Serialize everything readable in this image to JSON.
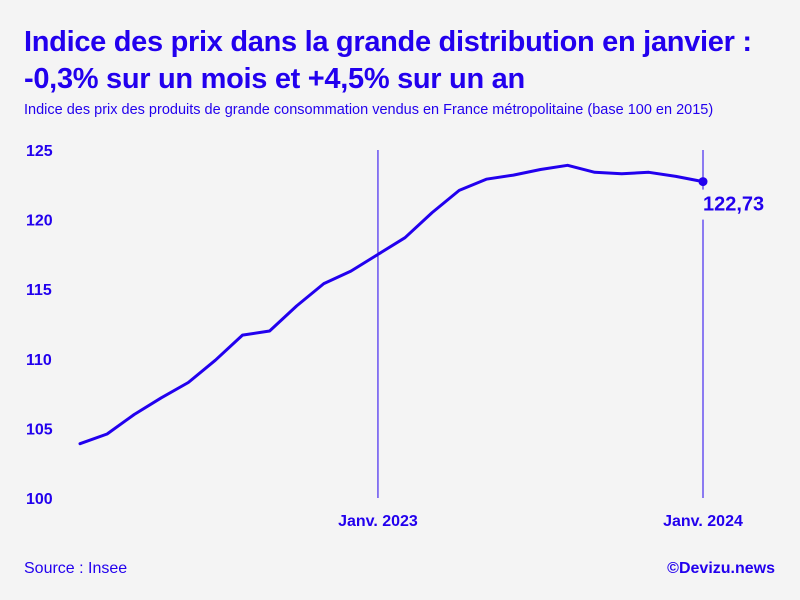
{
  "title_line1": "Indice des prix dans la grande distribution en janvier :",
  "title_line2": "-0,3% sur un mois et +4,5% sur un an",
  "subtitle": "Indice des prix des produits de grande consommation vendus en France métropolitaine (base 100 en 2015)",
  "source": "Source : Insee",
  "brand": "©Devizu.news",
  "colors": {
    "accent": "#2200ee",
    "background": "#f4f4f4"
  },
  "chart_data": {
    "type": "line",
    "title": "Indice des prix dans la grande distribution en janvier : -0,3% sur un mois et +4,5% sur un an",
    "xlabel": "",
    "ylabel": "",
    "ylim": [
      100,
      125
    ],
    "y_ticks": [
      100,
      105,
      110,
      115,
      120,
      125
    ],
    "grid": false,
    "x_ticks": [
      {
        "index": 11,
        "label": "Janv. 2023"
      },
      {
        "index": 23,
        "label": "Janv. 2024"
      }
    ],
    "end_label": "122,73",
    "series": [
      {
        "name": "Indice des prix",
        "values": [
          103.9,
          104.6,
          106.0,
          107.2,
          108.3,
          109.9,
          111.7,
          112.0,
          113.8,
          115.4,
          116.3,
          117.5,
          118.7,
          120.5,
          122.1,
          122.9,
          123.2,
          123.6,
          123.9,
          123.4,
          123.3,
          123.4,
          123.1,
          122.73
        ]
      }
    ]
  }
}
